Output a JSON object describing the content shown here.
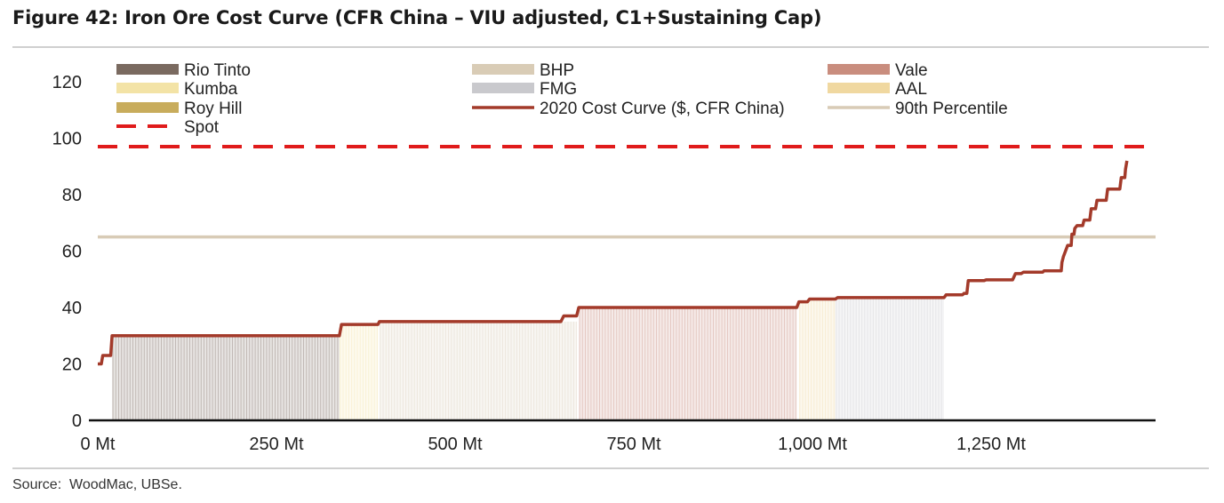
{
  "title": "Figure 42: Iron Ore Cost Curve (CFR China – VIU adjusted, C1+Sustaining Cap)",
  "source": "Source:  WoodMac, UBSe.",
  "chart_data": {
    "type": "area",
    "xlabel": "",
    "ylabel": "",
    "xlim": [
      0,
      1480
    ],
    "ylim": [
      0,
      130
    ],
    "x_ticks": [
      0,
      250,
      500,
      750,
      1000,
      1250
    ],
    "x_tick_labels": [
      "0 Mt",
      "250 Mt",
      "500 Mt",
      "750 Mt",
      "1,000 Mt",
      "1,250 Mt"
    ],
    "y_ticks": [
      0,
      20,
      40,
      60,
      80,
      100,
      120
    ],
    "y_tick_labels": [
      "0",
      "20",
      "40",
      "60",
      "80",
      "100",
      "120"
    ],
    "grid": false,
    "legend": {
      "placement": "top",
      "entries": [
        {
          "label": "Rio Tinto",
          "color": "#7a6a60",
          "kind": "block"
        },
        {
          "label": "BHP",
          "color": "#d9ccb6",
          "kind": "block"
        },
        {
          "label": "Vale",
          "color": "#c98d7e",
          "kind": "block"
        },
        {
          "label": "Kumba",
          "color": "#f3e3a6",
          "kind": "block"
        },
        {
          "label": "FMG",
          "color": "#c9c9cd",
          "kind": "block"
        },
        {
          "label": "AAL",
          "color": "#f0d8a0",
          "kind": "block"
        },
        {
          "label": "Roy Hill",
          "color": "#c8ac5c",
          "kind": "block"
        },
        {
          "label": "2020 Cost Curve ($, CFR China)",
          "color": "#a33a2a",
          "kind": "line"
        },
        {
          "label": "90th Percentile",
          "color": "#d8cbb6",
          "kind": "line"
        },
        {
          "label": "Spot",
          "color": "#e01b1b",
          "kind": "dash"
        }
      ]
    },
    "series": [
      {
        "name": "2020 Cost Curve ($, CFR China)",
        "color": "#a33a2a",
        "points": [
          [
            0,
            20
          ],
          [
            5,
            20
          ],
          [
            7,
            23
          ],
          [
            18,
            23
          ],
          [
            20,
            30
          ],
          [
            338,
            30
          ],
          [
            341,
            34
          ],
          [
            392,
            34
          ],
          [
            394,
            35
          ],
          [
            648,
            35
          ],
          [
            652,
            37
          ],
          [
            670,
            37
          ],
          [
            673,
            40
          ],
          [
            978,
            40
          ],
          [
            981,
            42
          ],
          [
            993,
            42
          ],
          [
            996,
            43
          ],
          [
            1032,
            43
          ],
          [
            1035,
            43.5
          ],
          [
            1184,
            43.5
          ],
          [
            1187,
            44.5
          ],
          [
            1210,
            44.5
          ],
          [
            1212,
            45
          ],
          [
            1216,
            45
          ],
          [
            1218,
            49.5
          ],
          [
            1240,
            49.5
          ],
          [
            1243,
            49.8
          ],
          [
            1280,
            49.8
          ],
          [
            1284,
            52
          ],
          [
            1292,
            52
          ],
          [
            1295,
            52.5
          ],
          [
            1322,
            52.5
          ],
          [
            1324,
            53
          ],
          [
            1348,
            53
          ],
          [
            1349,
            56
          ],
          [
            1351,
            58
          ],
          [
            1354,
            60
          ],
          [
            1357,
            62
          ],
          [
            1362,
            62
          ],
          [
            1363,
            66
          ],
          [
            1366,
            66
          ],
          [
            1367,
            68
          ],
          [
            1370,
            69
          ],
          [
            1378,
            69
          ],
          [
            1380,
            71
          ],
          [
            1388,
            71
          ],
          [
            1390,
            75
          ],
          [
            1396,
            75
          ],
          [
            1398,
            78
          ],
          [
            1411,
            78
          ],
          [
            1413,
            82
          ],
          [
            1430,
            82
          ],
          [
            1432,
            86
          ],
          [
            1437,
            86
          ],
          [
            1438,
            89
          ],
          [
            1440,
            92
          ]
        ]
      }
    ],
    "companies": [
      {
        "name": "Rio Tinto",
        "x_start": 20,
        "x_end": 338,
        "value": 30
      },
      {
        "name": "Kumba",
        "x_start": 338,
        "x_end": 392,
        "value": 34
      },
      {
        "name": "BHP",
        "x_start": 394,
        "x_end": 670,
        "value": 35
      },
      {
        "name": "Vale",
        "x_start": 673,
        "x_end": 978,
        "value": 40
      },
      {
        "name": "AAL",
        "x_start": 981,
        "x_end": 1032,
        "value": 42.5
      },
      {
        "name": "FMG",
        "x_start": 1032,
        "x_end": 1184,
        "value": 43.5
      }
    ],
    "reference_lines": [
      {
        "name": "Spot",
        "value": 97,
        "color": "#e01b1b",
        "style": "dash"
      },
      {
        "name": "90th Percentile",
        "value": 65,
        "color": "#d8cbb6",
        "style": "solid"
      }
    ]
  }
}
